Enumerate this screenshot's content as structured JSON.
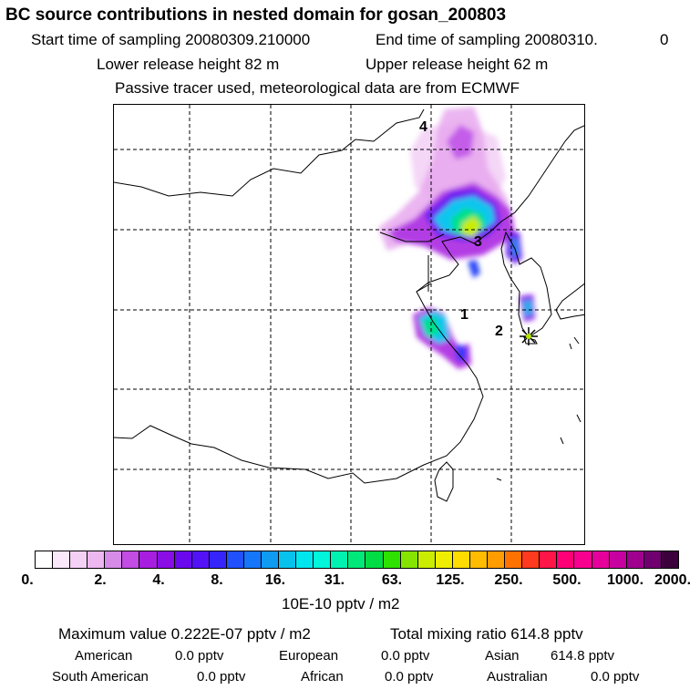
{
  "header": {
    "title": "BC  source contributions in nested domain for gosan_200803",
    "start_sampling": "Start time of sampling 20080309.210000",
    "end_sampling": "End time of sampling 20080310.",
    "end_sampling_suffix": "0",
    "lower_release": "Lower release height   82 m",
    "upper_release": "Upper release height   62 m",
    "tracer_note": "Passive tracer used, meteorological data are from ECMWF"
  },
  "map": {
    "site_labels": [
      "1",
      "2",
      "3",
      "4"
    ],
    "site_marker": "star-icon"
  },
  "colorbar": {
    "colors": [
      "#ffffff",
      "#fbe8fb",
      "#f5d0f5",
      "#edb7f0",
      "#d78be8",
      "#c24ce4",
      "#a71ee0",
      "#8a0de5",
      "#6a08ee",
      "#5212f5",
      "#3525fb",
      "#2150fd",
      "#1676f9",
      "#0f9bf2",
      "#08c2ee",
      "#00e6ee",
      "#00f5da",
      "#00f2b0",
      "#00e879",
      "#00dc44",
      "#2ee100",
      "#86e500",
      "#c9ec00",
      "#f0ee00",
      "#ffdc00",
      "#ffbc00",
      "#ff9c00",
      "#ff7200",
      "#ff3a1e",
      "#ff1548",
      "#ff0077",
      "#f80090",
      "#e5009c",
      "#c700a0",
      "#a0008e",
      "#700070",
      "#3c003c"
    ],
    "ticks": [
      "0.",
      "2.",
      "4.",
      "8.",
      "16.",
      "31.",
      "63.",
      "125.",
      "250.",
      "500.",
      "1000.",
      "2000."
    ],
    "units": "10E-10 pptv / m2"
  },
  "stats": {
    "maximum": "Maximum value  0.222E-07 pptv / m2",
    "total": "Total mixing ratio      614.8 pptv",
    "regions": [
      {
        "name": "American",
        "value": "0.0 pptv"
      },
      {
        "name": "European",
        "value": "0.0 pptv"
      },
      {
        "name": "Asian",
        "value": "614.8 pptv"
      },
      {
        "name": "South American",
        "value": "0.0 pptv"
      },
      {
        "name": "African",
        "value": "0.0 pptv"
      },
      {
        "name": "Australian",
        "value": "0.0 pptv"
      }
    ]
  }
}
